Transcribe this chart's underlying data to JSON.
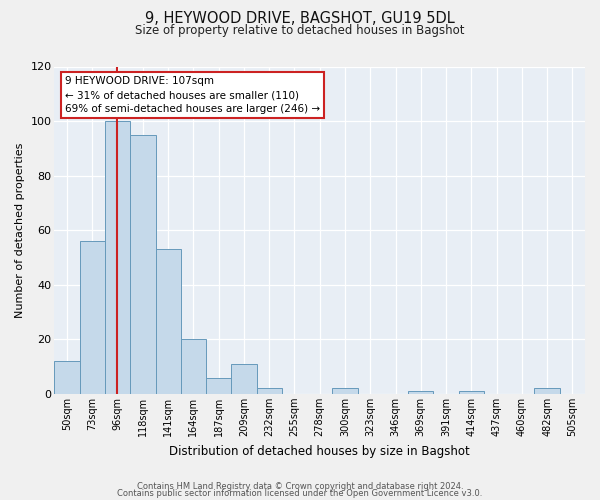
{
  "title": "9, HEYWOOD DRIVE, BAGSHOT, GU19 5DL",
  "subtitle": "Size of property relative to detached houses in Bagshot",
  "xlabel": "Distribution of detached houses by size in Bagshot",
  "ylabel": "Number of detached properties",
  "bin_labels": [
    "50sqm",
    "73sqm",
    "96sqm",
    "118sqm",
    "141sqm",
    "164sqm",
    "187sqm",
    "209sqm",
    "232sqm",
    "255sqm",
    "278sqm",
    "300sqm",
    "323sqm",
    "346sqm",
    "369sqm",
    "391sqm",
    "414sqm",
    "437sqm",
    "460sqm",
    "482sqm",
    "505sqm"
  ],
  "bar_values": [
    12,
    56,
    100,
    95,
    53,
    20,
    6,
    11,
    2,
    0,
    0,
    2,
    0,
    0,
    1,
    0,
    1,
    0,
    0,
    2,
    0
  ],
  "bar_color": "#c5d9ea",
  "bar_edge_color": "#6699bb",
  "background_color": "#e8eef5",
  "grid_color": "#ffffff",
  "vline_x_idx": 2.478,
  "ylim": [
    0,
    120
  ],
  "yticks": [
    0,
    20,
    40,
    60,
    80,
    100,
    120
  ],
  "annotation_title": "9 HEYWOOD DRIVE: 107sqm",
  "annotation_line1": "← 31% of detached houses are smaller (110)",
  "annotation_line2": "69% of semi-detached houses are larger (246) →",
  "vline_color": "#cc2222",
  "footer1": "Contains HM Land Registry data © Crown copyright and database right 2024.",
  "footer2": "Contains public sector information licensed under the Open Government Licence v3.0."
}
